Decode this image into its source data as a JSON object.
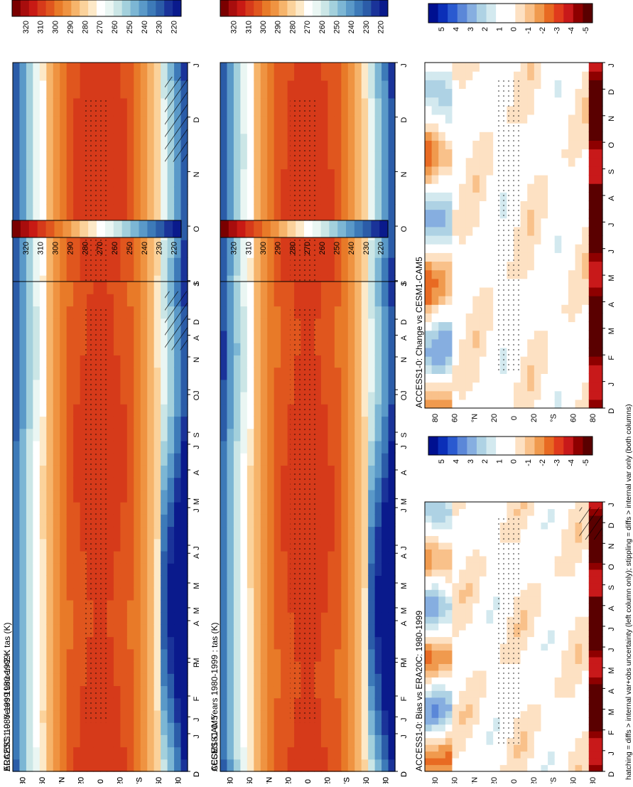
{
  "figure": {
    "footnote": "hatching = diffs > internal var+obs uncertainty (left column only); stippling = diffs > internal var only (both columns)"
  },
  "colors": {
    "abs_scale": [
      "#0a1a8c",
      "#1a3399",
      "#2b5ca8",
      "#3d7ab8",
      "#5a99c8",
      "#7cb6d4",
      "#a3d0dc",
      "#cbe6e6",
      "#eaf6f3",
      "#ffffff",
      "#fde9c8",
      "#fbd29b",
      "#f6b46b",
      "#ef9341",
      "#e87a28",
      "#e0561e",
      "#d63a1a",
      "#c81a14",
      "#a80d0d",
      "#7a0000"
    ],
    "diff_scale": [
      "#001090",
      "#0b2fb8",
      "#2a5ad0",
      "#5b87d8",
      "#86aee0",
      "#aed2e4",
      "#d3e9ef",
      "#ffffff",
      "#ffffff",
      "#fde1c3",
      "#f9c18a",
      "#f09a4e",
      "#e86a22",
      "#e03b1c",
      "#c8191a",
      "#8e0000",
      "#5a0000"
    ]
  },
  "chart_data": [
    {
      "type": "heatmap",
      "id": "p1",
      "title": "ACCESS1-0: Years 1980-1999 : tas (K)",
      "x_ticks": [
        "D",
        "J",
        "F",
        "M",
        "A",
        "M",
        "J",
        "J",
        "A",
        "S",
        "O",
        "N",
        "D",
        "J"
      ],
      "y_ticks": [
        "80",
        "60",
        "°N",
        "20",
        "0",
        "20",
        "°S",
        "60",
        "80"
      ],
      "colorbar_labels": [
        "320",
        "310",
        "300",
        "290",
        "280",
        "270",
        "260",
        "250",
        "240",
        "230",
        "220"
      ],
      "scale": "abs",
      "hatched": true,
      "stippled": true,
      "months": [
        0,
        1,
        2,
        3,
        4,
        5,
        6,
        7,
        8,
        9,
        10,
        11,
        12,
        13
      ],
      "latitudes": [
        90,
        -90
      ]
    },
    {
      "type": "heatmap",
      "id": "p2",
      "title": "ACCESS1-0: Years 1980-1999 : tas (K)",
      "x_ticks": [
        "D",
        "J",
        "F",
        "M",
        "A",
        "M",
        "J",
        "J",
        "A",
        "S",
        "O",
        "N",
        "D",
        "J"
      ],
      "y_ticks": [
        "80",
        "60",
        "°N",
        "20",
        "0",
        "20",
        "°S",
        "60",
        "80"
      ],
      "colorbar_labels": [
        "320",
        "310",
        "300",
        "290",
        "280",
        "270",
        "260",
        "250",
        "240",
        "230",
        "220"
      ],
      "scale": "abs",
      "hatched": false,
      "stippled": true
    },
    {
      "type": "heatmap",
      "id": "p3",
      "title": "ERA20C: 1980-1999 Uncer=2 K",
      "x_ticks": [
        "D",
        "J",
        "F",
        "M",
        "A",
        "M",
        "J",
        "J",
        "A",
        "S",
        "O",
        "N",
        "D",
        "J"
      ],
      "y_ticks": [
        "80",
        "60",
        "°N",
        "20",
        "0",
        "20",
        "°S",
        "60",
        "80"
      ],
      "colorbar_labels": [
        "320",
        "310",
        "300",
        "290",
        "280",
        "270",
        "260",
        "250",
        "240",
        "230",
        "220"
      ],
      "scale": "abs",
      "hatched": true,
      "stippled": true
    },
    {
      "type": "heatmap",
      "id": "p4",
      "title": "CESM1-CAM5",
      "x_ticks": [
        "D",
        "J",
        "F",
        "M",
        "A",
        "M",
        "J",
        "J",
        "A",
        "S",
        "O",
        "N",
        "D",
        "J"
      ],
      "y_ticks": [
        "80",
        "60",
        "°N",
        "20",
        "0",
        "20",
        "°S",
        "60",
        "80"
      ],
      "colorbar_labels": [
        "320",
        "310",
        "300",
        "290",
        "280",
        "270",
        "260",
        "250",
        "240",
        "230",
        "220"
      ],
      "scale": "abs",
      "hatched": false,
      "stippled": true
    },
    {
      "type": "heatmap",
      "id": "p5",
      "title": "ACCESS1-0: Bias vs ERA20C: 1980-1999",
      "x_ticks": [
        "D",
        "J",
        "F",
        "M",
        "A",
        "M",
        "J",
        "J",
        "A",
        "S",
        "O",
        "N",
        "D",
        "J"
      ],
      "y_ticks": [
        "80",
        "60",
        "°N",
        "20",
        "0",
        "20",
        "°S",
        "60",
        "80"
      ],
      "colorbar_labels": [
        "5",
        "4",
        "3",
        "2",
        "1",
        "0",
        "-1",
        "-2",
        "-3",
        "-4",
        "-5"
      ],
      "scale": "diff",
      "hatched": true,
      "stippled": true
    },
    {
      "type": "heatmap",
      "id": "p6",
      "title": "ACCESS1-0: Change vs CESM1-CAM5",
      "x_ticks": [
        "D",
        "J",
        "F",
        "M",
        "A",
        "M",
        "J",
        "J",
        "A",
        "S",
        "O",
        "N",
        "D",
        "J"
      ],
      "y_ticks": [
        "80",
        "60",
        "°N",
        "20",
        "0",
        "20",
        "°S",
        "60",
        "80"
      ],
      "colorbar_labels": [
        "5",
        "4",
        "3",
        "2",
        "1",
        "0",
        "-1",
        "-2",
        "-3",
        "-4",
        "-5"
      ],
      "scale": "diff",
      "hatched": false,
      "stippled": true
    }
  ]
}
